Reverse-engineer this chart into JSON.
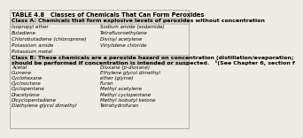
{
  "title": "TABLE 4.8   Classes of Chemicals That Can Form Peroxides",
  "class_a_header": "Class A: Chemicals that form explosive levels of peroxides without concentration",
  "class_a_left": [
    "Isopropyl ether",
    "Butadiene",
    "Chlorobutadiene (chloroprene)",
    "Potassium amide",
    "Potassium metal"
  ],
  "class_a_right": [
    "Sodium amide (sodamide)",
    "Tetrafluoroethylene",
    "Divinyl acetylene",
    "Vinylidene chloride",
    ""
  ],
  "class_b_header_line1": "Class B: These chemicals are a peroxide hazard on concentration (distillation/evaporation;",
  "class_b_header_line2": "should be performed if concentration is intended or suspected.   ¹(See Chapter 6, section f",
  "class_b_left": [
    "Acetal",
    "Cumene",
    "Cyclohexane",
    "Cyclooctane",
    "Cyclopentane",
    "Diacetylene",
    "Dicyclopentadiene",
    "Diethylene glycol dimethyl"
  ],
  "class_b_right": [
    "Dioxane (p-dioxane)",
    "Ethylene glycol dimethyl",
    "ether (glyme)",
    "Furan",
    "Methyl acetylene",
    "Methyl cyclopentane",
    "Methyl isobutyl ketone",
    "Tetrahydrofuran"
  ],
  "bg_color": "#eeebe5",
  "header_bg": "#d4d0c8",
  "border_color": "#aaaaaa",
  "title_fontsize": 4.8,
  "header_fontsize": 4.5,
  "body_fontsize": 4.0
}
